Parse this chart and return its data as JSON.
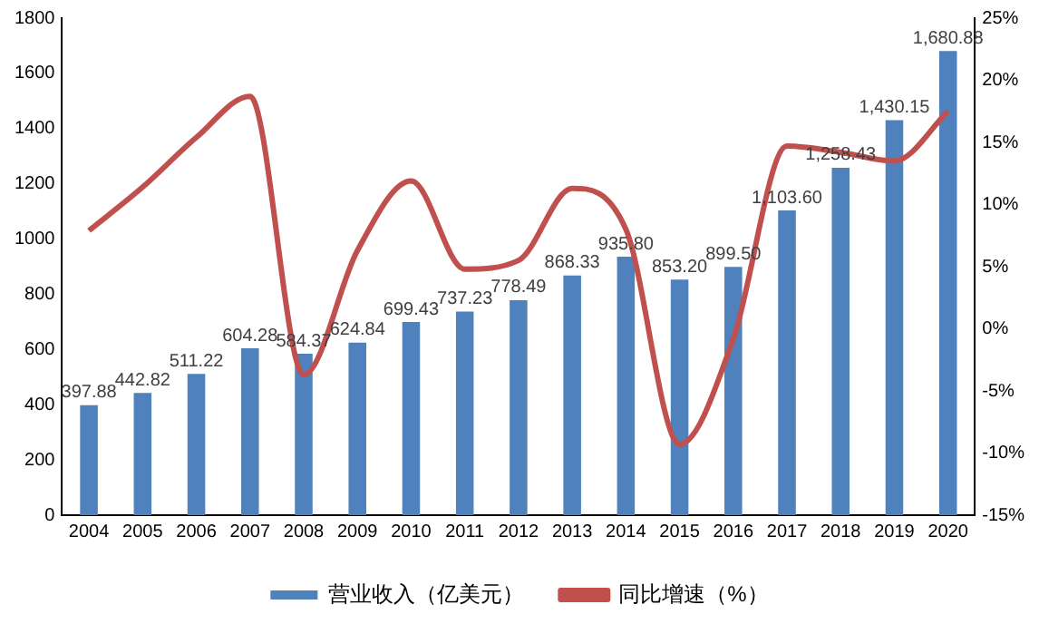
{
  "chart_data": {
    "type": "bar",
    "categories": [
      "2004",
      "2005",
      "2006",
      "2007",
      "2008",
      "2009",
      "2010",
      "2011",
      "2012",
      "2013",
      "2014",
      "2015",
      "2016",
      "2017",
      "2018",
      "2019",
      "2020"
    ],
    "series": [
      {
        "name": "营业收入（亿美元）",
        "color": "#4f81bd",
        "values": [
          397.88,
          442.82,
          511.22,
          604.28,
          584.37,
          624.84,
          699.43,
          737.23,
          778.49,
          868.33,
          935.8,
          853.2,
          899.5,
          1103.6,
          1258.43,
          1430.15,
          1680.88
        ],
        "value_labels": [
          "397.88",
          "442.82",
          "511.22",
          "604.28",
          "584.37",
          "624.84",
          "699.43",
          "737.23",
          "778.49",
          "868.33",
          "935.80",
          "853.20",
          "899.50",
          "1,103.60",
          "1,258.43",
          "1,430.15",
          "1,680.88"
        ]
      },
      {
        "name": "同比增速（%）",
        "type": "line",
        "axis": "y2",
        "color": "#c0504d",
        "values": [
          7.9,
          11.4,
          15.4,
          18.7,
          -3.7,
          6.3,
          11.9,
          4.8,
          5.5,
          11.3,
          8,
          -9.3,
          -0.8,
          14.7,
          14.2,
          13.5,
          17.5
        ]
      }
    ],
    "ylim": [
      0,
      1800
    ],
    "yticks": [
      0,
      200,
      400,
      600,
      800,
      1000,
      1200,
      1400,
      1600,
      1800
    ],
    "y2lim": [
      -15,
      25
    ],
    "y2ticks": [
      {
        "value": -15,
        "label": "-15%"
      },
      {
        "value": -10,
        "label": "-10%"
      },
      {
        "value": -5,
        "label": "-5%"
      },
      {
        "value": 0,
        "label": "0%"
      },
      {
        "value": 5,
        "label": "5%"
      },
      {
        "value": 10,
        "label": "10%"
      },
      {
        "value": 15,
        "label": "15%"
      },
      {
        "value": 20,
        "label": "20%"
      },
      {
        "value": 25,
        "label": "25%"
      }
    ],
    "grid": false,
    "legend": "bottom",
    "marker": "none"
  }
}
